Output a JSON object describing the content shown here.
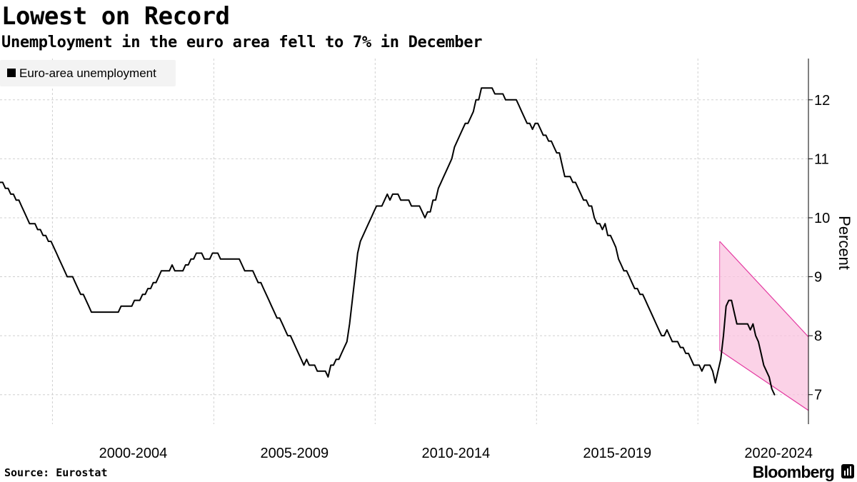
{
  "title": "Lowest on Record",
  "subtitle": "Unemployment in the euro area fell to 7% in December",
  "source": "Source:  Eurostat",
  "brand": "Bloomberg",
  "colors": {
    "line": "#000000",
    "band_fill": "#f9c3df",
    "band_edge": "#e43aa1",
    "grid": "#d0d0d0",
    "legend_bg": "#f3f3f3"
  },
  "chart_data": {
    "type": "line",
    "title": "Lowest on Record",
    "subtitle": "Unemployment in the euro area fell to 7% in December",
    "ylabel": "Percent",
    "xlabel": "",
    "ylim": [
      6.5,
      12.7
    ],
    "xlim": [
      1998.0,
      2023.05
    ],
    "yticks": [
      7,
      8,
      9,
      10,
      11,
      12
    ],
    "x_tick_labels": [
      "2000-2004",
      "2005-2009",
      "2010-2014",
      "2015-2019",
      "2020-2024"
    ],
    "x_period_starts": [
      1999.625,
      2004.625,
      2009.625,
      2014.625,
      2019.625,
      2024.625
    ],
    "grid": true,
    "legend_position": "top-left",
    "series": [
      {
        "name": "Euro-area unemployment",
        "x_start": 1998.0,
        "x_step": 0.08333,
        "values": [
          10.6,
          10.6,
          10.5,
          10.5,
          10.4,
          10.4,
          10.3,
          10.3,
          10.2,
          10.1,
          10.0,
          9.9,
          9.9,
          9.9,
          9.8,
          9.8,
          9.7,
          9.7,
          9.6,
          9.6,
          9.5,
          9.4,
          9.3,
          9.2,
          9.1,
          9.0,
          9.0,
          9.0,
          8.9,
          8.8,
          8.7,
          8.7,
          8.6,
          8.5,
          8.4,
          8.4,
          8.4,
          8.4,
          8.4,
          8.4,
          8.4,
          8.4,
          8.4,
          8.4,
          8.4,
          8.5,
          8.5,
          8.5,
          8.5,
          8.5,
          8.6,
          8.6,
          8.6,
          8.7,
          8.7,
          8.8,
          8.8,
          8.9,
          8.9,
          9.0,
          9.1,
          9.1,
          9.1,
          9.1,
          9.2,
          9.1,
          9.1,
          9.1,
          9.1,
          9.2,
          9.2,
          9.3,
          9.3,
          9.4,
          9.4,
          9.4,
          9.3,
          9.3,
          9.3,
          9.4,
          9.4,
          9.4,
          9.3,
          9.3,
          9.3,
          9.3,
          9.3,
          9.3,
          9.3,
          9.3,
          9.2,
          9.1,
          9.1,
          9.1,
          9.1,
          9.0,
          8.9,
          8.9,
          8.8,
          8.7,
          8.6,
          8.5,
          8.4,
          8.3,
          8.3,
          8.2,
          8.1,
          8.0,
          8.0,
          7.9,
          7.8,
          7.7,
          7.6,
          7.5,
          7.6,
          7.5,
          7.5,
          7.5,
          7.4,
          7.4,
          7.4,
          7.4,
          7.3,
          7.5,
          7.5,
          7.6,
          7.6,
          7.7,
          7.8,
          7.9,
          8.2,
          8.6,
          9.0,
          9.4,
          9.6,
          9.7,
          9.8,
          9.9,
          10.0,
          10.1,
          10.2,
          10.2,
          10.2,
          10.3,
          10.4,
          10.3,
          10.4,
          10.4,
          10.4,
          10.3,
          10.3,
          10.3,
          10.3,
          10.2,
          10.2,
          10.2,
          10.2,
          10.1,
          10.0,
          10.1,
          10.1,
          10.3,
          10.3,
          10.5,
          10.6,
          10.7,
          10.8,
          10.9,
          11.0,
          11.2,
          11.3,
          11.4,
          11.5,
          11.6,
          11.6,
          11.7,
          11.8,
          12.0,
          12.0,
          12.2,
          12.2,
          12.2,
          12.2,
          12.2,
          12.1,
          12.1,
          12.1,
          12.1,
          12.0,
          12.0,
          12.0,
          12.0,
          12.0,
          11.9,
          11.8,
          11.7,
          11.6,
          11.6,
          11.5,
          11.6,
          11.6,
          11.5,
          11.4,
          11.4,
          11.3,
          11.3,
          11.2,
          11.1,
          11.1,
          10.9,
          10.7,
          10.7,
          10.7,
          10.6,
          10.6,
          10.5,
          10.4,
          10.3,
          10.3,
          10.2,
          10.2,
          10.0,
          9.9,
          9.9,
          9.8,
          9.9,
          9.7,
          9.7,
          9.6,
          9.5,
          9.3,
          9.2,
          9.1,
          9.1,
          9.0,
          8.9,
          8.8,
          8.8,
          8.7,
          8.7,
          8.6,
          8.5,
          8.4,
          8.3,
          8.2,
          8.1,
          8.0,
          8.0,
          8.1,
          8.0,
          7.9,
          7.9,
          7.9,
          7.8,
          7.8,
          7.7,
          7.7,
          7.6,
          7.5,
          7.5,
          7.5,
          7.4,
          7.5,
          7.5,
          7.5,
          7.4,
          7.2,
          7.4,
          7.6,
          8.0,
          8.5,
          8.6,
          8.6,
          8.4,
          8.2,
          8.2,
          8.2,
          8.2,
          8.2,
          8.1,
          8.2,
          8.0,
          7.9,
          7.7,
          7.5,
          7.4,
          7.3,
          7.1,
          7.0
        ]
      }
    ],
    "highlight_band": {
      "x": [
        2020.3,
        2023.95
      ],
      "upper": [
        9.6,
        7.45
      ],
      "lower": [
        7.75,
        6.4
      ]
    }
  }
}
